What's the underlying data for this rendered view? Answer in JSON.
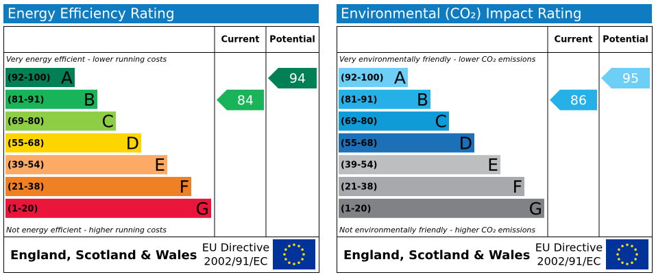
{
  "panels": [
    {
      "title": "Energy Efficiency Rating",
      "current_header": "Current",
      "potential_header": "Potential",
      "top_note": "Very energy efficient - lower running costs",
      "bottom_note": "Not energy efficient - higher running costs",
      "bands": [
        {
          "range": "(92-100)",
          "letter": "A",
          "color": "#008054"
        },
        {
          "range": "(81-91)",
          "letter": "B",
          "color": "#19b459"
        },
        {
          "range": "(69-80)",
          "letter": "C",
          "color": "#8dce46"
        },
        {
          "range": "(55-68)",
          "letter": "D",
          "color": "#ffd500"
        },
        {
          "range": "(39-54)",
          "letter": "E",
          "color": "#fcaa65"
        },
        {
          "range": "(21-38)",
          "letter": "F",
          "color": "#ef8023"
        },
        {
          "range": "(1-20)",
          "letter": "G",
          "color": "#e9153b"
        }
      ],
      "current": 84,
      "potential": 94,
      "footer": {
        "region": "England, Scotland & Wales",
        "directive_line1": "EU Directive",
        "directive_line2": "2002/91/EC"
      }
    },
    {
      "title": "Environmental (CO₂) Impact Rating",
      "current_header": "Current",
      "potential_header": "Potential",
      "top_note": "Very environmentally friendly - lower CO₂ emissions",
      "bottom_note": "Not environmentally friendly - higher CO₂ emissions",
      "bands": [
        {
          "range": "(92-100)",
          "letter": "A",
          "color": "#6dcff6"
        },
        {
          "range": "(81-91)",
          "letter": "B",
          "color": "#25b1e8"
        },
        {
          "range": "(69-80)",
          "letter": "C",
          "color": "#0f9ad8"
        },
        {
          "range": "(55-68)",
          "letter": "D",
          "color": "#1c70b7"
        },
        {
          "range": "(39-54)",
          "letter": "E",
          "color": "#bcbec0"
        },
        {
          "range": "(21-38)",
          "letter": "F",
          "color": "#a7a9ac"
        },
        {
          "range": "(1-20)",
          "letter": "G",
          "color": "#808285"
        }
      ],
      "current": 86,
      "potential": 95,
      "footer": {
        "region": "England, Scotland & Wales",
        "directive_line1": "EU Directive",
        "directive_line2": "2002/91/EC"
      }
    }
  ]
}
